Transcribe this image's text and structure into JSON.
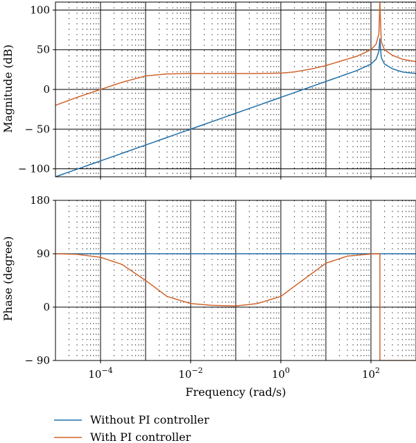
{
  "chart_data": {
    "type": "line",
    "x_scale": "log",
    "xlabel": "Frequency (rad/s)",
    "xlim": [
      1e-05,
      1000
    ],
    "x_ticks": [
      {
        "value": 0.0001,
        "base": "10",
        "exp": "−4"
      },
      {
        "value": 0.01,
        "base": "10",
        "exp": "−2"
      },
      {
        "value": 1,
        "base": "10",
        "exp": "0"
      },
      {
        "value": 100,
        "base": "10",
        "exp": "2"
      }
    ],
    "grid": true,
    "legend_position": "bottom-left",
    "series": [
      {
        "name": "Without PI controller",
        "color": "#1f6fa8"
      },
      {
        "name": "With PI controller",
        "color": "#d2632a"
      }
    ],
    "panels": [
      {
        "id": "magnitude",
        "ylabel": "Magnitude (dB)",
        "ylim": [
          -110,
          110
        ],
        "y_ticks": [
          {
            "value": 100,
            "label": "100"
          },
          {
            "value": 50,
            "label": "50"
          },
          {
            "value": 0,
            "label": "0"
          },
          {
            "value": -50,
            "label": "− 50"
          },
          {
            "value": -100,
            "label": "− 100"
          }
        ],
        "series_values": [
          {
            "x": [
              1e-05,
              0.0001,
              0.001,
              0.01,
              0.1,
              1,
              10,
              50,
              100,
              130,
              150,
              158,
              163,
              170,
              200,
              300,
              500,
              1000
            ],
            "y": [
              -110,
              -90,
              -70,
              -50,
              -30,
              -10,
              10,
              24,
              32,
              38,
              48,
              64,
              52,
              40,
              32,
              26,
              22,
              20
            ]
          },
          {
            "x": [
              1e-05,
              3e-05,
              0.0001,
              0.0003,
              0.001,
              0.003,
              0.01,
              0.1,
              0.3,
              1,
              2,
              5,
              10,
              50,
              100,
              130,
              150,
              158,
              163,
              170,
              200,
              300,
              500,
              1000
            ],
            "y": [
              -20,
              -10,
              0,
              9,
              17,
              19.5,
              20,
              20,
              20,
              20.5,
              22,
              26,
              30,
              42,
              50,
              57,
              70,
              110,
              85,
              60,
              50,
              43,
              38,
              35
            ]
          }
        ]
      },
      {
        "id": "phase",
        "ylabel": "Phase (degree)",
        "ylim": [
          -90,
          180
        ],
        "y_ticks": [
          {
            "value": 180,
            "label": "180"
          },
          {
            "value": 90,
            "label": "90"
          },
          {
            "value": 0,
            "label": "0"
          },
          {
            "value": -90,
            "label": "− 90"
          }
        ],
        "series_values": [
          {
            "x": [
              1e-05,
              1000
            ],
            "y": [
              90,
              90
            ]
          },
          {
            "x": [
              1e-05,
              3e-05,
              0.0001,
              0.0003,
              0.001,
              0.003,
              0.01,
              0.03,
              0.1,
              0.3,
              1,
              3,
              10,
              30,
              100,
              150,
              158,
              158.5,
              1000
            ],
            "y": [
              90,
              89,
              84,
              72,
              45,
              18,
              6,
              3,
              2,
              6,
              18,
              45,
              74,
              86,
              89.5,
              90,
              90,
              -90,
              -90
            ]
          }
        ]
      }
    ]
  }
}
